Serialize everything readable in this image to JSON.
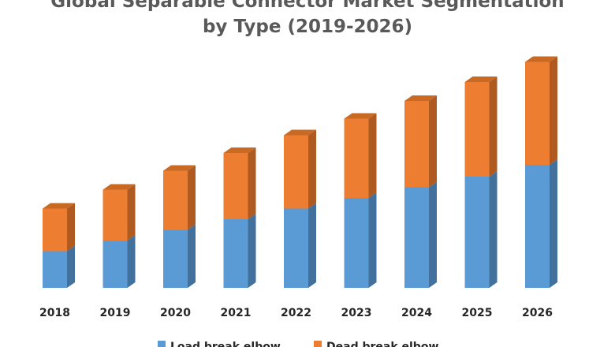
{
  "chart_data": {
    "type": "bar",
    "stacked": true,
    "three_d": true,
    "title_lines": [
      "Global Separable Connector Market Segmentation",
      "by Type (2019-2026)"
    ],
    "categories": [
      "2018",
      "2019",
      "2020",
      "2021",
      "2022",
      "2023",
      "2024",
      "2025",
      "2026"
    ],
    "series": [
      {
        "name": "Load break elbow",
        "color": "#5B9BD5",
        "side_color": "#41719C",
        "top_color": "#4A7FB0",
        "values": [
          3.1,
          4.0,
          4.9,
          5.8,
          6.7,
          7.6,
          8.5,
          9.4,
          10.4
        ]
      },
      {
        "name": "Dead break elbow",
        "color": "#ED7D31",
        "side_color": "#AE5A21",
        "top_color": "#C96A24",
        "values": [
          3.6,
          4.3,
          5.0,
          5.6,
          6.2,
          6.7,
          7.3,
          8.0,
          8.7
        ]
      }
    ],
    "ylim": [
      0,
      20
    ],
    "grid": false,
    "legend_position": "bottom"
  }
}
